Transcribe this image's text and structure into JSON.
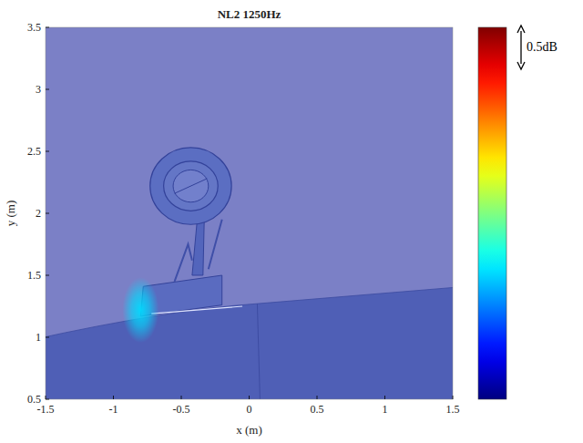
{
  "chart_data": {
    "type": "heatmap",
    "title": "NL2 1250Hz",
    "x_label": "x (m)",
    "y_label": "y (m)",
    "xlim": [
      -1.5,
      1.5
    ],
    "ylim": [
      0.5,
      3.5
    ],
    "xticks": [
      -1.5,
      -1,
      -0.5,
      0,
      0.5,
      1,
      1.5
    ],
    "yticks": [
      0.5,
      1,
      1.5,
      2,
      2.5,
      3,
      3.5
    ],
    "sources": [
      {
        "x": -0.8,
        "y": 1.22,
        "level": 0.17
      }
    ],
    "clim": [
      0,
      0.5
    ],
    "colorbar_label": "0.5dB"
  }
}
